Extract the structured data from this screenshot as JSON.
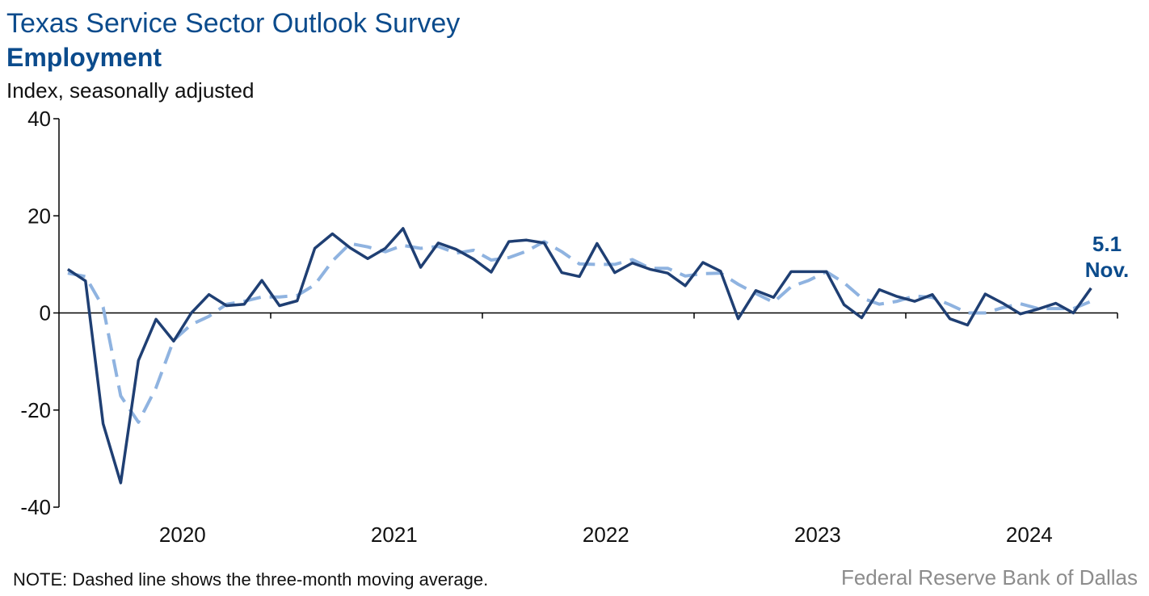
{
  "header": {
    "title": "Texas Service Sector Outlook Survey",
    "subtitle": "Employment",
    "ylabel": "Index, seasonally adjusted"
  },
  "footer": {
    "note": "NOTE: Dashed line shows the three-month moving average.",
    "source": "Federal Reserve Bank of Dallas"
  },
  "colors": {
    "actual": "#1f3f73",
    "moving_average": "#8fb3e0",
    "title": "#0b4b8c",
    "axis": "#000000"
  },
  "chart_data": {
    "type": "line",
    "title": "Employment",
    "ylabel": "Index, seasonally adjusted",
    "ylim": [
      -40,
      40
    ],
    "yticks": [
      40,
      20,
      0,
      -20,
      -40
    ],
    "xticks": [
      "2020",
      "2021",
      "2022",
      "2023",
      "2024"
    ],
    "x_start": "2019-12",
    "x_end": "2024-11",
    "grid": false,
    "annotation": {
      "value": "5.1",
      "label": "Nov."
    },
    "series": [
      {
        "style": "solid",
        "values": [
          9.0,
          6.6,
          -22.8,
          -35.0,
          -9.8,
          -1.3,
          -5.8,
          0.0,
          3.8,
          1.5,
          1.8,
          6.7,
          1.5,
          2.5,
          13.3,
          16.3,
          13.4,
          11.2,
          13.3,
          17.4,
          9.4,
          14.4,
          13.1,
          11.1,
          8.4,
          14.7,
          15.0,
          14.4,
          8.3,
          7.5,
          14.3,
          8.3,
          10.3,
          9.0,
          8.2,
          5.6,
          10.4,
          8.6,
          -1.2,
          4.6,
          3.2,
          8.5,
          8.5,
          8.5,
          1.7,
          -1.0,
          4.8,
          3.4,
          2.4,
          3.8,
          -1.2,
          -2.5,
          3.9,
          2.0,
          -0.2,
          0.8,
          2.0,
          0.0,
          5.1
        ]
      },
      {
        "style": "dashed",
        "values": [
          8.2,
          7.5,
          1.2,
          -17.1,
          -22.5,
          -15.4,
          -5.6,
          -2.4,
          -0.7,
          1.8,
          2.4,
          3.3,
          3.3,
          3.6,
          5.8,
          10.7,
          14.3,
          13.6,
          12.6,
          13.9,
          13.3,
          13.7,
          12.3,
          12.9,
          10.9,
          11.4,
          12.7,
          14.7,
          12.6,
          10.1,
          10.0,
          10.0,
          11.0,
          9.2,
          9.2,
          7.6,
          8.1,
          8.2,
          5.9,
          4.0,
          2.2,
          5.4,
          6.7,
          8.5,
          6.2,
          3.1,
          1.8,
          2.4,
          3.5,
          3.2,
          1.7,
          0.0,
          0.0,
          1.1,
          1.9,
          0.9,
          0.9,
          0.9,
          2.4
        ]
      }
    ]
  }
}
